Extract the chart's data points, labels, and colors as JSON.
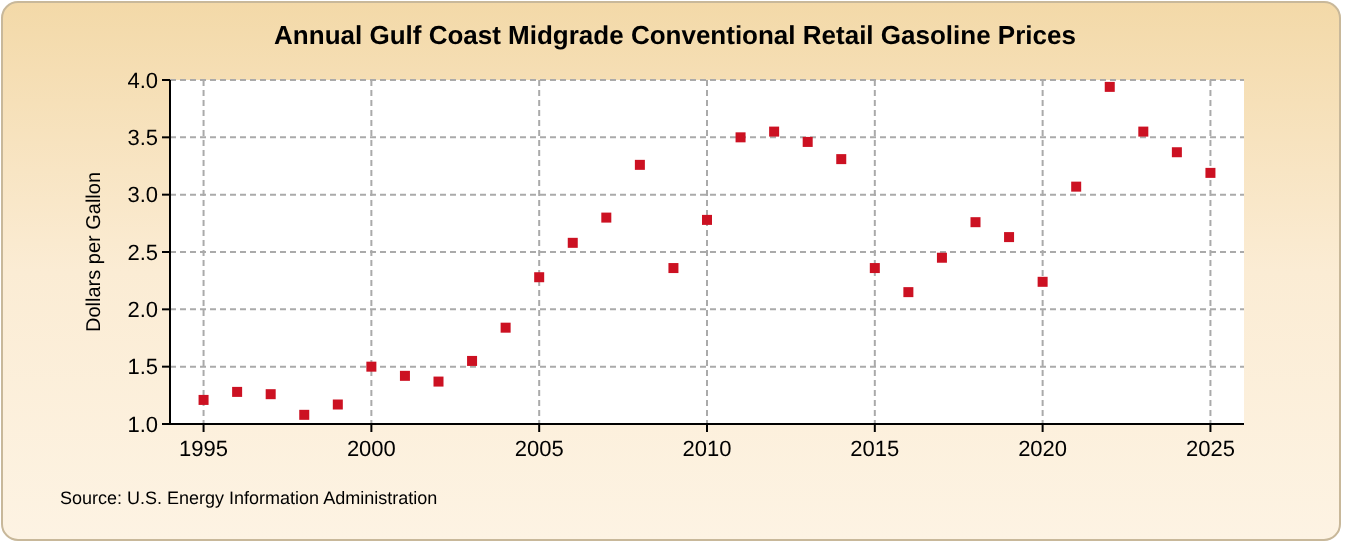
{
  "chart_data": {
    "type": "scatter",
    "title": "Annual Gulf Coast Midgrade Conventional Retail Gasoline Prices",
    "ylabel": "Dollars per Gallon",
    "x": [
      1995,
      1996,
      1997,
      1998,
      1999,
      2000,
      2001,
      2002,
      2003,
      2004,
      2005,
      2006,
      2007,
      2008,
      2009,
      2010,
      2011,
      2012,
      2013,
      2014,
      2015,
      2016,
      2017,
      2018,
      2019,
      2020,
      2021,
      2022,
      2023,
      2024,
      2025
    ],
    "series": [
      {
        "color": "#cc1122",
        "values": [
          1.21,
          1.28,
          1.26,
          1.08,
          1.17,
          1.5,
          1.42,
          1.37,
          1.55,
          1.84,
          2.28,
          2.58,
          2.8,
          3.26,
          2.36,
          2.78,
          3.5,
          3.55,
          3.46,
          3.31,
          2.36,
          2.15,
          2.45,
          2.76,
          2.63,
          2.24,
          3.07,
          3.94,
          3.55,
          3.37,
          3.19
        ]
      }
    ],
    "xlim": [
      1994,
      2026
    ],
    "xticks": [
      1995,
      2000,
      2005,
      2010,
      2015,
      2020,
      2025
    ],
    "ylim": [
      1.0,
      4.0
    ],
    "yticks": [
      {
        "value": 1,
        "label": "1.0"
      },
      {
        "value": 1.5,
        "label": "1.5"
      },
      {
        "value": 2,
        "label": "2.0"
      },
      {
        "value": 2.5,
        "label": "2.5"
      },
      {
        "value": 3,
        "label": "3.0"
      },
      {
        "value": 3.5,
        "label": "3.5"
      },
      {
        "value": 4,
        "label": "4.0"
      }
    ],
    "grid": true,
    "marker": "square",
    "annotations": [
      "Source: U.S. Energy Information Administration"
    ]
  }
}
